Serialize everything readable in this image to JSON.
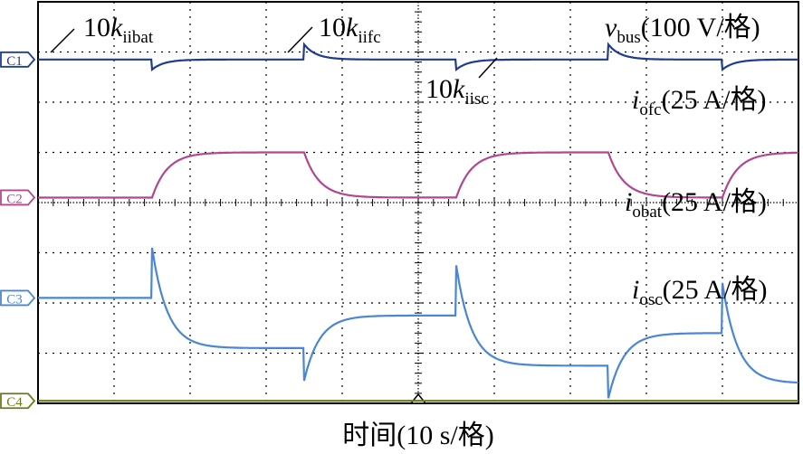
{
  "chart_data": {
    "type": "line",
    "title": "",
    "xlabel": "时间(10 s/格)",
    "ylabel": "",
    "grid": true,
    "x_divisions": 10,
    "y_divisions": 8,
    "x_unit_per_div": "10 s",
    "xlim": [
      0,
      100
    ],
    "channels": [
      {
        "id": "C1",
        "color": "#1f3b8f",
        "baseline_div": 6.85,
        "label_main": "v",
        "label_sub": "bus",
        "label_tail": "(100 V/格)"
      },
      {
        "id": "C2",
        "color": "#b0478f",
        "baseline_div": 4.1,
        "label_main": "i",
        "label_sub": "ofc",
        "label_tail": "(25 A/格)"
      },
      {
        "id": "C3",
        "color": "#4a86d4",
        "baseline_div": 2.1,
        "label_main": "i",
        "label_sub": "obat",
        "label_tail": "(25 A/格)"
      },
      {
        "id": "C4",
        "color": "#6a7a1a",
        "baseline_div": 0.05,
        "label_main": "i",
        "label_sub": "osc",
        "label_tail": "(25 A/格)"
      }
    ],
    "series": [
      {
        "name": "C1",
        "steps_t": [
          15,
          35,
          55,
          75,
          90
        ],
        "steps_amp": [
          -0.2,
          0.3,
          -0.2,
          0.3,
          -0.2
        ],
        "tau": 1.6,
        "transient": true
      },
      {
        "name": "C2",
        "steps_t": [
          15,
          35,
          55,
          75,
          90
        ],
        "steps_amp": [
          0.9,
          -0.9,
          0.9,
          -0.9,
          0.9
        ],
        "tau": 2.0
      },
      {
        "name": "C3",
        "steps_t": [
          15,
          35,
          55,
          75,
          90
        ],
        "steps_amp": [
          1.0,
          -0.65,
          1.0,
          -0.65,
          1.0
        ],
        "tau": 2.0,
        "spike": true
      },
      {
        "name": "C4",
        "steps_t": [],
        "steps_amp": [],
        "tau": 1.0
      }
    ],
    "annotations": [
      {
        "id": "kiibat",
        "prefix": "10",
        "k": "k",
        "sub": "iibat"
      },
      {
        "id": "kiifc",
        "prefix": "10",
        "k": "k",
        "sub": "iifc"
      },
      {
        "id": "kiisc",
        "prefix": "10",
        "k": "k",
        "sub": "iisc"
      }
    ]
  },
  "colors": {
    "grid": "#000000",
    "frame": "#000000"
  }
}
